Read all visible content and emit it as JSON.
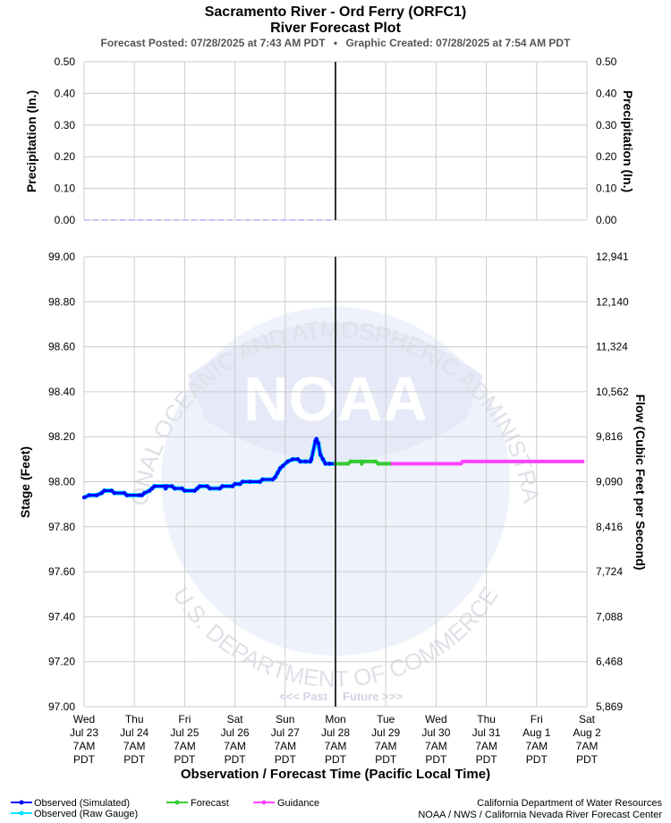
{
  "header": {
    "title": "Sacramento River - Ord Ferry (ORFC1)",
    "subtitle": "River Forecast Plot",
    "posted": "Forecast Posted: 07/28/2025 at 7:43 AM PDT",
    "bullet": "•",
    "created": "Graphic Created: 07/28/2025 at 7:54 AM PDT"
  },
  "watermark": {
    "logo_text": "NOAA",
    "ring_top": "NATIONAL OCEANIC AND ATMOSPHERIC ADMINISTRATION",
    "ring_bottom": "U.S. DEPARTMENT OF COMMERCE"
  },
  "past_label": "<<< Past",
  "future_label": "Future >>>",
  "footer": {
    "agency1": "California Department of Water Resources",
    "agency2": "NOAA / NWS / California Nevada River Forecast Center"
  },
  "legend": [
    {
      "label": "Observed (Simulated)",
      "color": "#0000ff"
    },
    {
      "label": "Observed (Raw Gauge)",
      "color": "#00e5ff"
    },
    {
      "label": "Forecast",
      "color": "#33cc33"
    },
    {
      "label": "Guidance",
      "color": "#ff44ff"
    }
  ],
  "chart_data": [
    {
      "type": "line",
      "ylabel": "Precipitation (In.)",
      "ylabel_right": "Precipitation (In.)",
      "ylim": [
        0,
        0.5
      ],
      "yticks": [
        "0.00",
        "0.10",
        "0.20",
        "0.30",
        "0.40",
        "0.50"
      ],
      "series": [
        {
          "values": [
            [
              0,
              0
            ],
            [
              5,
              0
            ]
          ],
          "color": "#b0b0ff"
        }
      ]
    },
    {
      "type": "line",
      "xlabel": "Observation / Forecast Time (Pacific Local Time)",
      "ylabel": "Stage (Feet)",
      "ylabel_right": "Flow (Cubic Feet per Second)",
      "ylim": [
        97.0,
        99.0
      ],
      "yticks": [
        "97.00",
        "97.20",
        "97.40",
        "97.60",
        "97.80",
        "98.00",
        "98.20",
        "98.40",
        "98.60",
        "98.80",
        "99.00"
      ],
      "yticks_right": [
        "5,869",
        "6,468",
        "7,088",
        "7,724",
        "8,416",
        "9,090",
        "9,816",
        "10,562",
        "11,324",
        "12,140",
        "12,941"
      ],
      "x_tick_labels": [
        [
          "Wed",
          "Jul 23",
          "7AM",
          "PDT"
        ],
        [
          "Thu",
          "Jul 24",
          "7AM",
          "PDT"
        ],
        [
          "Fri",
          "Jul 25",
          "7AM",
          "PDT"
        ],
        [
          "Sat",
          "Jul 26",
          "7AM",
          "PDT"
        ],
        [
          "Sun",
          "Jul 27",
          "7AM",
          "PDT"
        ],
        [
          "Mon",
          "Jul 28",
          "7AM",
          "PDT"
        ],
        [
          "Tue",
          "Jul 29",
          "7AM",
          "PDT"
        ],
        [
          "Wed",
          "Jul 30",
          "7AM",
          "PDT"
        ],
        [
          "Thu",
          "Jul 31",
          "7AM",
          "PDT"
        ],
        [
          "Fri",
          "Aug 1",
          "7AM",
          "PDT"
        ],
        [
          "Sat",
          "Aug 2",
          "7AM",
          "PDT"
        ]
      ],
      "now_day": 5,
      "series": [
        {
          "name": "Observed (Raw Gauge)",
          "color": "#00e5ff",
          "values": [
            [
              0.0,
              97.93
            ],
            [
              0.1,
              97.94
            ],
            [
              0.25,
              97.94
            ],
            [
              0.35,
              97.95
            ],
            [
              0.4,
              97.96
            ],
            [
              0.55,
              97.96
            ],
            [
              0.6,
              97.95
            ],
            [
              0.8,
              97.95
            ],
            [
              0.85,
              97.94
            ],
            [
              1.1,
              97.94
            ],
            [
              1.15,
              97.94
            ],
            [
              1.2,
              97.95
            ],
            [
              1.3,
              97.96
            ],
            [
              1.35,
              97.97
            ],
            [
              1.4,
              97.98
            ],
            [
              1.6,
              97.98
            ],
            [
              1.62,
              97.97
            ],
            [
              1.65,
              97.98
            ],
            [
              1.75,
              97.98
            ],
            [
              1.8,
              97.97
            ],
            [
              1.95,
              97.97
            ],
            [
              2.0,
              97.96
            ],
            [
              2.2,
              97.96
            ],
            [
              2.25,
              97.97
            ],
            [
              2.3,
              97.98
            ],
            [
              2.45,
              97.98
            ],
            [
              2.5,
              97.97
            ],
            [
              2.7,
              97.97
            ],
            [
              2.75,
              97.98
            ],
            [
              2.95,
              97.98
            ],
            [
              3.0,
              97.99
            ],
            [
              3.1,
              97.99
            ],
            [
              3.15,
              98.0
            ],
            [
              3.3,
              98.0
            ],
            [
              3.5,
              98.0
            ],
            [
              3.55,
              98.01
            ],
            [
              3.75,
              98.01
            ],
            [
              3.8,
              98.02
            ],
            [
              3.85,
              98.04
            ],
            [
              3.9,
              98.06
            ],
            [
              3.95,
              98.07
            ],
            [
              4.05,
              98.09
            ],
            [
              4.15,
              98.1
            ],
            [
              4.25,
              98.1
            ],
            [
              4.3,
              98.09
            ],
            [
              4.4,
              98.09
            ],
            [
              4.5,
              98.09
            ],
            [
              4.52,
              98.1
            ],
            [
              4.6,
              98.18
            ],
            [
              4.62,
              98.19
            ],
            [
              4.66,
              98.17
            ],
            [
              4.7,
              98.12
            ],
            [
              4.75,
              98.1
            ],
            [
              4.8,
              98.08
            ],
            [
              4.88,
              98.08
            ],
            [
              5.0,
              98.08
            ]
          ]
        },
        {
          "name": "Observed (Simulated)",
          "color": "#0000ff",
          "values": [
            [
              0.0,
              97.93
            ],
            [
              0.1,
              97.94
            ],
            [
              0.25,
              97.94
            ],
            [
              0.35,
              97.95
            ],
            [
              0.4,
              97.96
            ],
            [
              0.55,
              97.96
            ],
            [
              0.6,
              97.95
            ],
            [
              0.8,
              97.95
            ],
            [
              0.85,
              97.94
            ],
            [
              1.1,
              97.94
            ],
            [
              1.15,
              97.94
            ],
            [
              1.2,
              97.95
            ],
            [
              1.3,
              97.96
            ],
            [
              1.35,
              97.97
            ],
            [
              1.4,
              97.98
            ],
            [
              1.6,
              97.98
            ],
            [
              1.62,
              97.97
            ],
            [
              1.65,
              97.98
            ],
            [
              1.75,
              97.98
            ],
            [
              1.8,
              97.97
            ],
            [
              1.95,
              97.97
            ],
            [
              2.0,
              97.96
            ],
            [
              2.2,
              97.96
            ],
            [
              2.25,
              97.97
            ],
            [
              2.3,
              97.98
            ],
            [
              2.45,
              97.98
            ],
            [
              2.5,
              97.97
            ],
            [
              2.7,
              97.97
            ],
            [
              2.75,
              97.98
            ],
            [
              2.95,
              97.98
            ],
            [
              3.0,
              97.99
            ],
            [
              3.1,
              97.99
            ],
            [
              3.15,
              98.0
            ],
            [
              3.3,
              98.0
            ],
            [
              3.5,
              98.0
            ],
            [
              3.55,
              98.01
            ],
            [
              3.75,
              98.01
            ],
            [
              3.8,
              98.02
            ],
            [
              3.85,
              98.04
            ],
            [
              3.9,
              98.06
            ],
            [
              3.95,
              98.07
            ],
            [
              4.05,
              98.09
            ],
            [
              4.15,
              98.1
            ],
            [
              4.25,
              98.1
            ],
            [
              4.3,
              98.09
            ],
            [
              4.4,
              98.09
            ],
            [
              4.5,
              98.09
            ],
            [
              4.52,
              98.1
            ],
            [
              4.6,
              98.18
            ],
            [
              4.62,
              98.19
            ],
            [
              4.66,
              98.17
            ],
            [
              4.7,
              98.12
            ],
            [
              4.75,
              98.1
            ],
            [
              4.8,
              98.08
            ],
            [
              4.88,
              98.08
            ],
            [
              5.0,
              98.08
            ]
          ]
        },
        {
          "name": "Forecast",
          "color": "#33cc33",
          "values": [
            [
              5.0,
              98.08
            ],
            [
              5.25,
              98.08
            ],
            [
              5.3,
              98.09
            ],
            [
              5.5,
              98.09
            ],
            [
              5.52,
              98.08
            ],
            [
              5.55,
              98.09
            ],
            [
              5.8,
              98.09
            ],
            [
              5.85,
              98.08
            ],
            [
              6.1,
              98.08
            ]
          ]
        },
        {
          "name": "Guidance",
          "color": "#ff44ff",
          "values": [
            [
              6.1,
              98.08
            ],
            [
              7.5,
              98.08
            ],
            [
              7.52,
              98.09
            ],
            [
              9.95,
              98.09
            ]
          ]
        }
      ]
    }
  ]
}
